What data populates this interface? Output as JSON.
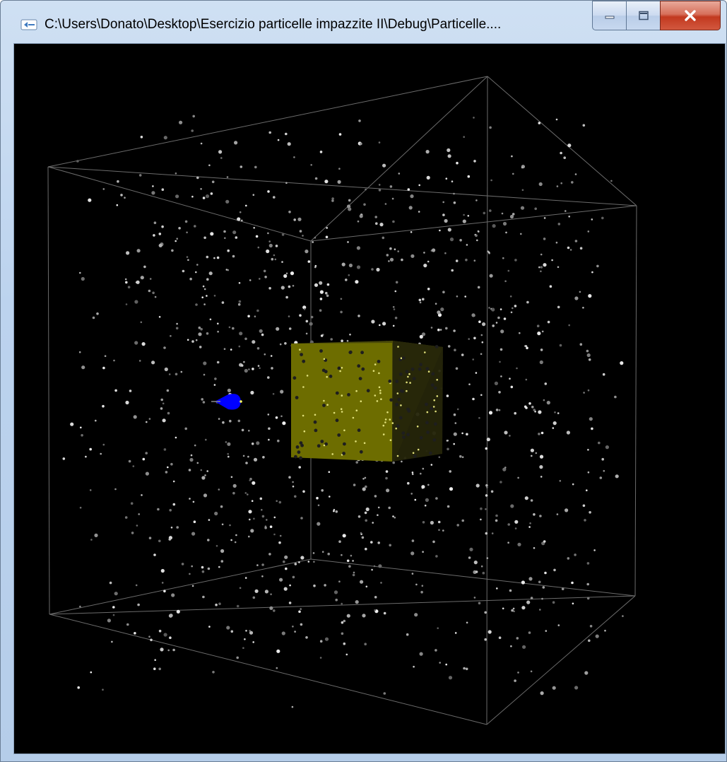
{
  "window": {
    "title": "C:\\Users\\Donato\\Desktop\\Esercizio particelle impazzite II\\Debug\\Particelle....",
    "app_icon": "console-app-icon",
    "buttons": [
      "minimize-icon",
      "maximize-icon",
      "close-icon"
    ]
  },
  "scene": {
    "background": "#000000",
    "box_color": "#6b6b6b",
    "cube_front_color": "#6e6e00",
    "cube_side_color": "#25250a",
    "cube_top_color": "#4a4a08",
    "particle_color": "#cfcfcf",
    "arrow_color": "#0000ff"
  }
}
